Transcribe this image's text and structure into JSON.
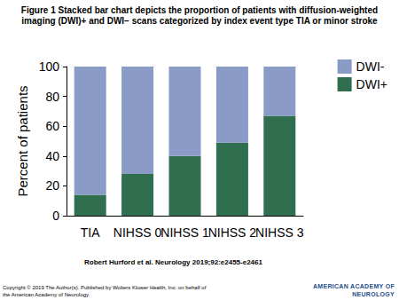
{
  "chart_data": {
    "type": "bar",
    "title": "Figure 1 Stacked bar chart depicts the proportion of patients with diffusion-weighted imaging (DWI)+ and DWI− scans categorized by index event type TIA or minor stroke",
    "categories": [
      "TIA",
      "NIHSS 0",
      "NIHSS 1",
      "NIHSS 2",
      "NIHSS 3"
    ],
    "series": [
      {
        "name": "DWI+",
        "color": "#2f6e4f",
        "values": [
          14,
          28,
          40,
          49,
          67
        ]
      },
      {
        "name": "DWI-",
        "color": "#8a9bc8",
        "values": [
          86,
          72,
          60,
          51,
          33
        ]
      }
    ],
    "ylabel": "Percent of patients",
    "ylim": [
      0,
      100
    ],
    "yticks": [
      0,
      20,
      40,
      60,
      80,
      100
    ],
    "stacked": true,
    "grid": false,
    "legend": "upper right"
  },
  "source": "Robert Hurford et al. Neurology 2019;92:e2455-e2461",
  "copyright": "Copyright © 2019 The Author(s). Published by Wolters Kluwer Health, Inc. on behalf of the American Academy of Neurology.",
  "logo": "AMERICAN ACADEMY OF NEUROLOGY"
}
